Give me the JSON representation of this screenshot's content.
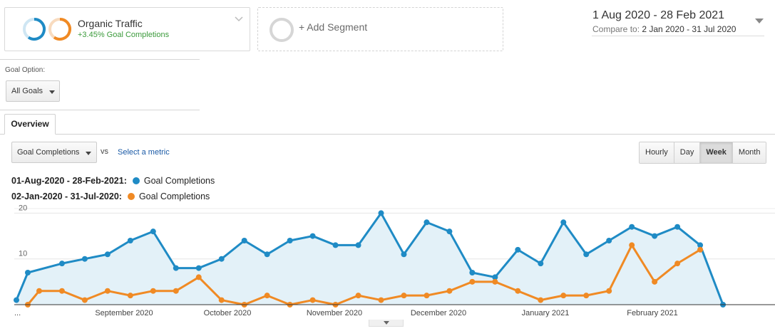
{
  "segment": {
    "name": "Organic Traffic",
    "subtitle": "+3.45% Goal Completions",
    "colors": {
      "primary": "#1f8bc5",
      "compare": "#f08a24"
    }
  },
  "add_segment": {
    "label": "+ Add Segment"
  },
  "date_range": {
    "main": "1 Aug 2020 - 28 Feb 2021",
    "compare_label": "Compare to:",
    "compare_value": "2 Jan 2020 - 31 Jul 2020"
  },
  "goal_option": {
    "label": "Goal Option:",
    "selected": "All Goals"
  },
  "tabs": [
    {
      "label": "Overview",
      "active": true
    }
  ],
  "metric": {
    "selected": "Goal Completions",
    "vs": "vs",
    "select_metric": "Select a metric"
  },
  "granularity": {
    "options": [
      "Hourly",
      "Day",
      "Week",
      "Month"
    ],
    "active": "Week"
  },
  "legend": [
    {
      "range": "01-Aug-2020 - 28-Feb-2021:",
      "metric": "Goal Completions",
      "color": "#1f8bc5"
    },
    {
      "range": "02-Jan-2020 - 31-Jul-2020:",
      "metric": "Goal Completions",
      "color": "#f08a24"
    }
  ],
  "chart_data": {
    "type": "area",
    "title": "",
    "xlabel": "",
    "ylabel": "",
    "ylim": [
      0,
      21
    ],
    "y_ticks": [
      "10",
      "20"
    ],
    "x_tick_labels": [
      "...",
      "September 2020",
      "October 2020",
      "November 2020",
      "December 2020",
      "January 2021",
      "February 2021"
    ],
    "x": [
      0,
      0.5,
      1,
      2,
      3,
      4,
      5,
      6,
      7,
      8,
      9,
      10,
      11,
      12,
      13,
      14,
      15,
      16,
      17,
      18,
      19,
      20,
      21,
      22,
      23,
      24,
      25,
      26,
      27,
      28,
      29,
      30,
      31,
      32
    ],
    "series": [
      {
        "values": [
          1,
          7,
          null,
          9,
          10,
          11,
          14,
          16,
          8,
          8,
          10,
          14,
          11,
          14,
          15,
          13,
          13,
          20,
          11,
          18,
          16,
          7,
          6,
          12,
          9,
          18,
          11,
          14,
          17,
          15,
          17,
          13,
          0,
          null
        ],
        "color": "#1f8bc5",
        "fill": "#e3f1f8"
      },
      {
        "values": [
          null,
          0,
          3,
          3,
          1,
          3,
          2,
          3,
          3,
          6,
          1,
          0,
          2,
          0,
          1,
          0,
          2,
          1,
          2,
          2,
          3,
          5,
          5,
          3,
          1,
          2,
          2,
          3,
          13,
          5,
          9,
          12,
          null,
          null
        ],
        "color": "#f08a24"
      }
    ]
  }
}
